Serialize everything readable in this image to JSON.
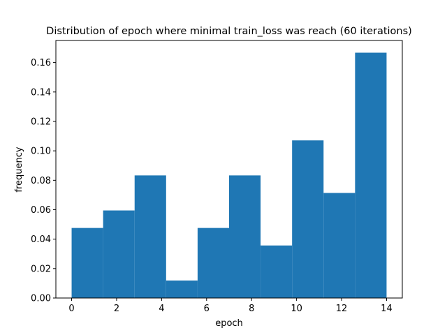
{
  "chart_data": {
    "type": "bar",
    "title": "Distribution of epoch where minimal train_loss was reach (60 iterations)",
    "xlabel": "epoch",
    "ylabel": "frequency",
    "xlim": [
      -0.7,
      14.7
    ],
    "ylim": [
      0,
      0.175
    ],
    "xticks": [
      0,
      2,
      4,
      6,
      8,
      10,
      12,
      14
    ],
    "xtick_labels": [
      "0",
      "2",
      "4",
      "6",
      "8",
      "10",
      "12",
      "14"
    ],
    "yticks": [
      0,
      0.02,
      0.04,
      0.06,
      0.08,
      0.1,
      0.12,
      0.14,
      0.16
    ],
    "ytick_labels": [
      "0.00",
      "0.02",
      "0.04",
      "0.06",
      "0.08",
      "0.10",
      "0.12",
      "0.14",
      "0.16"
    ],
    "bin_edges": [
      0,
      1.4,
      2.8,
      4.2,
      5.6,
      7.0,
      8.4,
      9.8,
      11.2,
      12.6,
      14.0
    ],
    "values": [
      0.0476,
      0.0595,
      0.0833,
      0.0119,
      0.0476,
      0.0833,
      0.0357,
      0.1071,
      0.0714,
      0.1667
    ],
    "bar_color": "#1f77b4",
    "grid": false,
    "legend": "none"
  }
}
